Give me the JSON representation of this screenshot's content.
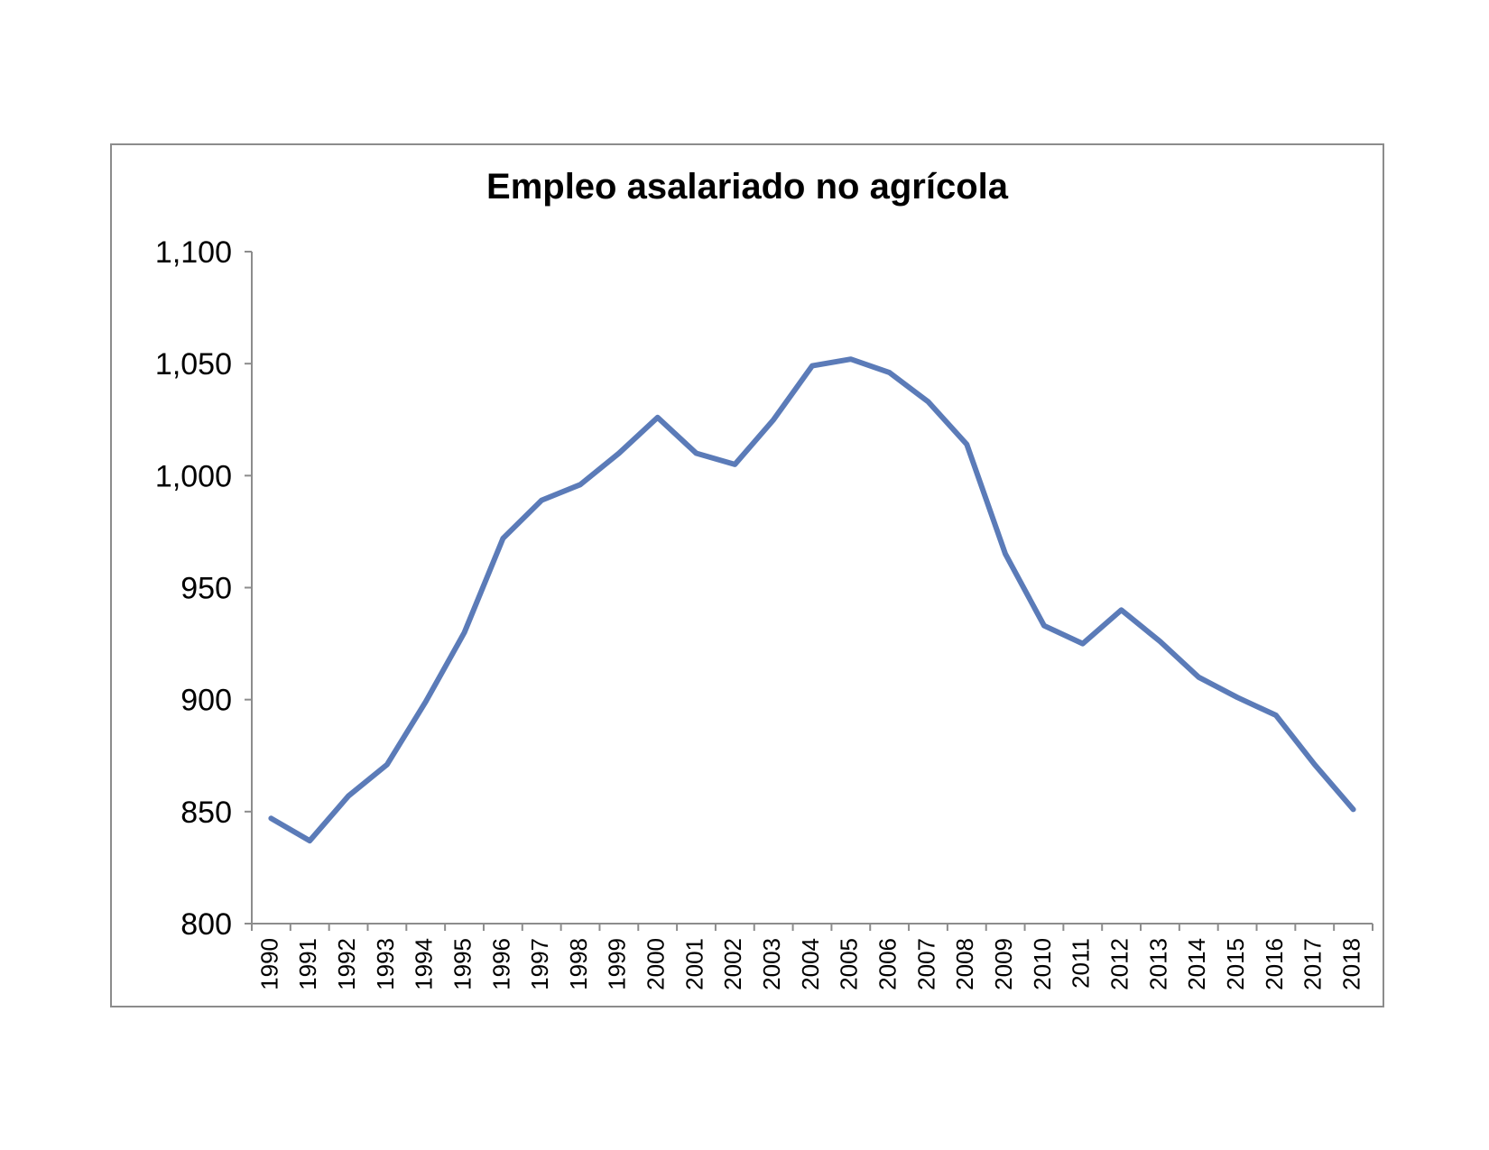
{
  "chart_data": {
    "type": "line",
    "title": "Empleo asalariado no agrícola",
    "xlabel": "",
    "ylabel": "",
    "categories": [
      "1990",
      "1991",
      "1992",
      "1993",
      "1994",
      "1995",
      "1996",
      "1997",
      "1998",
      "1999",
      "2000",
      "2001",
      "2002",
      "2003",
      "2004",
      "2005",
      "2006",
      "2007",
      "2008",
      "2009",
      "2010",
      "2011",
      "2012",
      "2013",
      "2014",
      "2015",
      "2016",
      "2017",
      "2018"
    ],
    "series": [
      {
        "values": [
          847,
          837,
          857,
          871,
          899,
          930,
          972,
          989,
          996,
          1010,
          1026,
          1010,
          1005,
          1025,
          1049,
          1052,
          1046,
          1033,
          1014,
          965,
          933,
          925,
          940,
          926,
          910,
          901,
          893,
          871,
          851
        ],
        "color": "#5b7bb8"
      }
    ],
    "ylim": [
      800,
      1100
    ],
    "yticks": [
      800,
      850,
      900,
      950,
      1000,
      1050,
      1100
    ],
    "ytick_labels": [
      "800",
      "850",
      "900",
      "950",
      "1,000",
      "1,050",
      "1,100"
    ],
    "grid": false,
    "legend": "none",
    "axis_color": "#8c8c8c"
  }
}
